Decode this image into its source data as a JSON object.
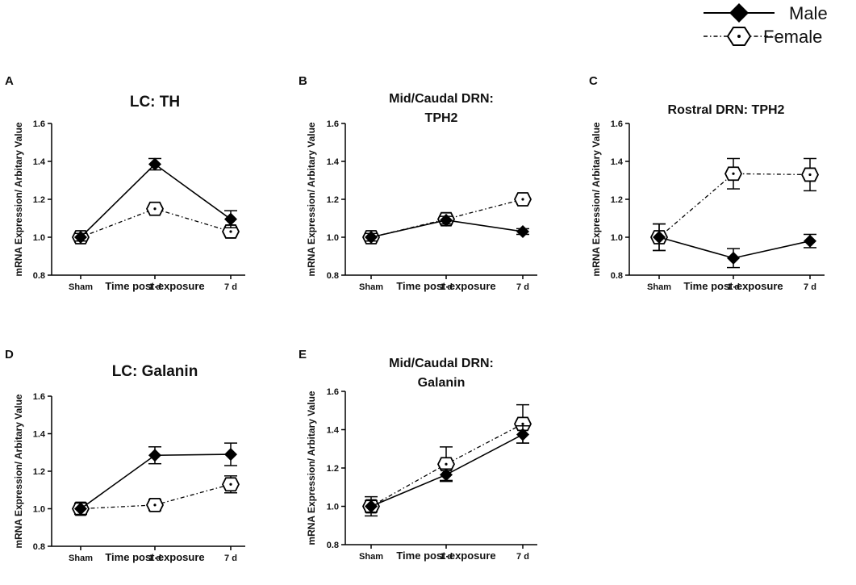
{
  "legend": {
    "male_label": "Male",
    "female_label": "Female"
  },
  "styles": {
    "line_color": "#000000"
  },
  "chart_data": [
    {
      "id": "A",
      "type": "line",
      "title_lines": [
        "LC: TH"
      ],
      "xlabel": "Time post-exposure",
      "ylabel": "mRNA Expression/ Arbitary Value",
      "categories": [
        "Sham",
        "1 d",
        "7 d"
      ],
      "ylim": [
        0.8,
        1.6
      ],
      "yticks": [
        "0.8",
        "1.0",
        "1.2",
        "1.4",
        "1.6"
      ],
      "series": [
        {
          "name": "Male",
          "values": [
            1.0,
            1.385,
            1.095
          ],
          "errors": [
            0.02,
            0.03,
            0.045
          ]
        },
        {
          "name": "Female",
          "values": [
            1.0,
            1.15,
            1.03
          ],
          "errors": [
            0.025,
            0.02,
            0.025
          ]
        }
      ]
    },
    {
      "id": "B",
      "type": "line",
      "title_lines": [
        "Mid/Caudal  DRN:",
        "TPH2"
      ],
      "xlabel": "Time post-exposure",
      "ylabel": "mRNA Expression/ Arbitary Value",
      "categories": [
        "Sham",
        "1 d",
        "7 d"
      ],
      "ylim": [
        0.8,
        1.6
      ],
      "yticks": [
        "0.8",
        "1.0",
        "1.2",
        "1.4",
        "1.6"
      ],
      "series": [
        {
          "name": "Male",
          "values": [
            1.0,
            1.09,
            1.03
          ],
          "errors": [
            0.02,
            0.02,
            0.015
          ]
        },
        {
          "name": "Female",
          "values": [
            1.0,
            1.095,
            1.2
          ],
          "errors": [
            0.02,
            0.02,
            0.025
          ]
        }
      ]
    },
    {
      "id": "C",
      "type": "line",
      "title_lines": [
        "Rostral DRN: TPH2"
      ],
      "xlabel": "Time post-exposure",
      "ylabel": "mRNA Expression/ Arbitary Value",
      "categories": [
        "Sham",
        "1 d",
        "7 d"
      ],
      "ylim": [
        0.8,
        1.6
      ],
      "yticks": [
        "0.8",
        "1.0",
        "1.2",
        "1.4",
        "1.6"
      ],
      "series": [
        {
          "name": "Male",
          "values": [
            1.0,
            0.89,
            0.98
          ],
          "errors": [
            0.07,
            0.05,
            0.035
          ]
        },
        {
          "name": "Female",
          "values": [
            1.0,
            1.335,
            1.33
          ],
          "errors": [
            0.07,
            0.08,
            0.085
          ]
        }
      ]
    },
    {
      "id": "D",
      "type": "line",
      "title_lines": [
        "LC: Galanin"
      ],
      "xlabel": "Time post-exposure",
      "ylabel": "mRNA Expression/ Arbitary Value",
      "categories": [
        "Sham",
        "1 d",
        "7 d"
      ],
      "ylim": [
        0.8,
        1.6
      ],
      "yticks": [
        "0.8",
        "1.0",
        "1.2",
        "1.4",
        "1.6"
      ],
      "series": [
        {
          "name": "Male",
          "values": [
            1.0,
            1.285,
            1.29
          ],
          "errors": [
            0.03,
            0.045,
            0.06
          ]
        },
        {
          "name": "Female",
          "values": [
            1.0,
            1.02,
            1.13
          ],
          "errors": [
            0.025,
            0.03,
            0.045
          ]
        }
      ]
    },
    {
      "id": "E",
      "type": "line",
      "title_lines": [
        "Mid/Caudal  DRN:",
        "Galanin"
      ],
      "xlabel": "Time post-exposure",
      "ylabel": "mRNA Expression/ Arbitary Value",
      "categories": [
        "Sham",
        "1 d",
        "7 d"
      ],
      "ylim": [
        0.8,
        1.6
      ],
      "yticks": [
        "0.8",
        "1.0",
        "1.2",
        "1.4",
        "1.6"
      ],
      "series": [
        {
          "name": "Male",
          "values": [
            1.0,
            1.165,
            1.375
          ],
          "errors": [
            0.03,
            0.03,
            0.045
          ]
        },
        {
          "name": "Female",
          "values": [
            1.0,
            1.22,
            1.43
          ],
          "errors": [
            0.05,
            0.09,
            0.1
          ]
        }
      ]
    }
  ]
}
